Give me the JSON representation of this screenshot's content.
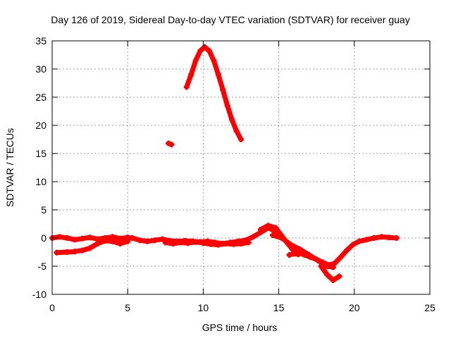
{
  "chart_data": {
    "type": "scatter",
    "title": "Day 126 of 2019, Sidereal Day-to-day VTEC variation (SDTVAR) for receiver guay",
    "xlabel": "GPS time / hours",
    "ylabel": "SDTVAR / TECUs",
    "xlim": [
      0,
      25
    ],
    "ylim": [
      -10,
      35
    ],
    "xticks": [
      0,
      5,
      10,
      15,
      20,
      25
    ],
    "yticks": [
      -10,
      -5,
      0,
      5,
      10,
      15,
      20,
      25,
      30,
      35
    ],
    "grid": true,
    "series": [
      {
        "name": "SDTVAR",
        "color": "#ff0000",
        "segments": [
          {
            "x": [
              0.0,
              0.5,
              1.0,
              1.5,
              2.0,
              2.5,
              3.0,
              3.5,
              4.0,
              4.5,
              5.0,
              5.3
            ],
            "y": [
              0.0,
              0.2,
              0.0,
              -0.3,
              -0.1,
              0.1,
              -0.2,
              0.0,
              0.2,
              -0.1,
              0.1,
              0.0
            ]
          },
          {
            "x": [
              0.3,
              1.0,
              1.5,
              2.0,
              2.5,
              3.0,
              3.5,
              4.0,
              4.5,
              5.0
            ],
            "y": [
              -2.6,
              -2.5,
              -2.4,
              -2.2,
              -1.8,
              -1.0,
              -0.5,
              -0.6,
              -1.0,
              -0.6
            ]
          },
          {
            "x": [
              5.3,
              5.8,
              6.3,
              6.8,
              7.3,
              7.8,
              8.3,
              8.8,
              9.3,
              9.8,
              10.3,
              10.8,
              11.3,
              11.8,
              12.3,
              12.8,
              13.3,
              13.8,
              14.3,
              14.8
            ],
            "y": [
              0.0,
              -0.4,
              -0.6,
              -0.4,
              -0.2,
              -0.5,
              -0.6,
              -0.5,
              -0.6,
              -0.7,
              -0.6,
              -0.8,
              -1.0,
              -0.8,
              -0.6,
              -0.4,
              0.2,
              1.0,
              1.8,
              1.2
            ]
          },
          {
            "x": [
              7.5,
              8.0,
              8.5,
              9.0,
              9.5,
              10.0,
              10.5,
              11.0,
              11.5,
              12.0,
              12.5,
              13.0
            ],
            "y": [
              -0.8,
              -1.0,
              -0.8,
              -0.9,
              -0.7,
              -0.9,
              -1.1,
              -1.2,
              -1.0,
              -1.1,
              -1.0,
              -0.8
            ]
          },
          {
            "x": [
              13.8,
              14.3,
              14.8,
              15.3,
              15.6,
              15.9,
              16.3,
              16.7,
              17.1,
              17.5,
              17.9,
              18.3,
              18.7,
              19.1,
              19.5,
              19.9,
              20.3,
              20.8,
              21.3,
              21.8,
              22.3,
              22.8
            ],
            "y": [
              1.5,
              2.2,
              1.8,
              0.0,
              -1.0,
              -2.0,
              -2.6,
              -3.0,
              -3.4,
              -3.8,
              -4.3,
              -4.8,
              -4.5,
              -3.4,
              -2.2,
              -1.2,
              -0.6,
              -0.3,
              0.0,
              0.2,
              0.1,
              0.0
            ]
          },
          {
            "x": [
              14.6,
              15.2,
              15.8,
              16.4,
              17.0,
              17.6,
              18.2,
              18.6
            ],
            "y": [
              0.5,
              0.0,
              -1.2,
              -2.0,
              -3.0,
              -4.0,
              -5.0,
              -5.2
            ]
          },
          {
            "x": [
              17.8,
              18.2,
              18.6,
              19.0
            ],
            "y": [
              -5.0,
              -6.5,
              -7.5,
              -6.8
            ]
          },
          {
            "x": [
              15.7,
              16.0,
              16.3
            ],
            "y": [
              -3.0,
              -2.8,
              -2.9
            ]
          },
          {
            "x": [
              7.7,
              7.9
            ],
            "y": [
              16.8,
              16.6
            ]
          },
          {
            "x": [
              8.9,
              9.2,
              9.5,
              9.8,
              10.1,
              10.4,
              10.7,
              11.0,
              11.3,
              11.6,
              11.9,
              12.2,
              12.5
            ],
            "y": [
              26.8,
              29.0,
              31.5,
              33.2,
              33.9,
              33.2,
              31.5,
              29.0,
              26.3,
              23.5,
              21.0,
              19.0,
              17.5
            ]
          }
        ]
      }
    ]
  }
}
